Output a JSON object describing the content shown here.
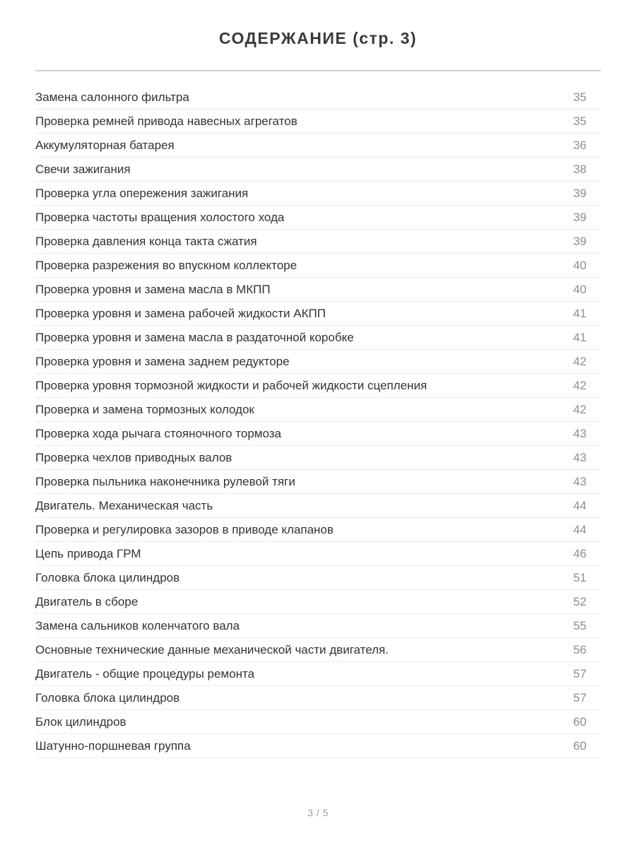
{
  "page": {
    "title": "СОДЕРЖАНИЕ (стр. 3)",
    "footer": "3 / 5"
  },
  "toc": {
    "items": [
      {
        "label": "Замена салонного фильтра",
        "page": "35"
      },
      {
        "label": "Проверка ремней привода навесных агрегатов",
        "page": "35"
      },
      {
        "label": "Аккумуляторная батарея",
        "page": "36"
      },
      {
        "label": "Свечи зажигания",
        "page": "38"
      },
      {
        "label": "Проверка угла опережения зажигания",
        "page": "39"
      },
      {
        "label": "Проверка частоты вращения холостого хода",
        "page": "39"
      },
      {
        "label": "Проверка давления конца такта сжатия",
        "page": "39"
      },
      {
        "label": "Проверка разрежения во впускном коллекторе",
        "page": "40"
      },
      {
        "label": "Проверка уровня и замена масла в МКПП",
        "page": "40"
      },
      {
        "label": "Проверка уровня и замена рабочей жидкости АКПП",
        "page": "41"
      },
      {
        "label": "Проверка уровня и замена масла в раздаточной коробке",
        "page": "41"
      },
      {
        "label": "Проверка уровня и замена заднем редукторе",
        "page": "42"
      },
      {
        "label": "Проверка уровня тормозной жидкости и рабочей жидкости сцепления",
        "page": "42"
      },
      {
        "label": "Проверка и замена тормозных колодок",
        "page": "42"
      },
      {
        "label": "Проверка хода рычага стояночного тормоза",
        "page": "43"
      },
      {
        "label": "Проверка чехлов приводных валов",
        "page": "43"
      },
      {
        "label": "Проверка пыльника наконечника рулевой тяги",
        "page": "43"
      },
      {
        "label": "Двигатель. Механическая часть",
        "page": "44"
      },
      {
        "label": "Проверка и регулировка зазоров в приводе клапанов",
        "page": "44"
      },
      {
        "label": "Цепь привода ГРМ",
        "page": "46"
      },
      {
        "label": "Головка блока цилиндров",
        "page": "51"
      },
      {
        "label": "Двигатель в сборе",
        "page": "52"
      },
      {
        "label": "Замена сальников коленчатого вала",
        "page": "55"
      },
      {
        "label": "Основные технические данные механической части двигателя.",
        "page": "56"
      },
      {
        "label": "Двигатель - общие процедуры ремонта",
        "page": "57"
      },
      {
        "label": "Головка блока цилиндров",
        "page": "57"
      },
      {
        "label": "Блок цилиндров",
        "page": "60"
      },
      {
        "label": "Шатунно-поршневая группа",
        "page": "60"
      }
    ]
  }
}
